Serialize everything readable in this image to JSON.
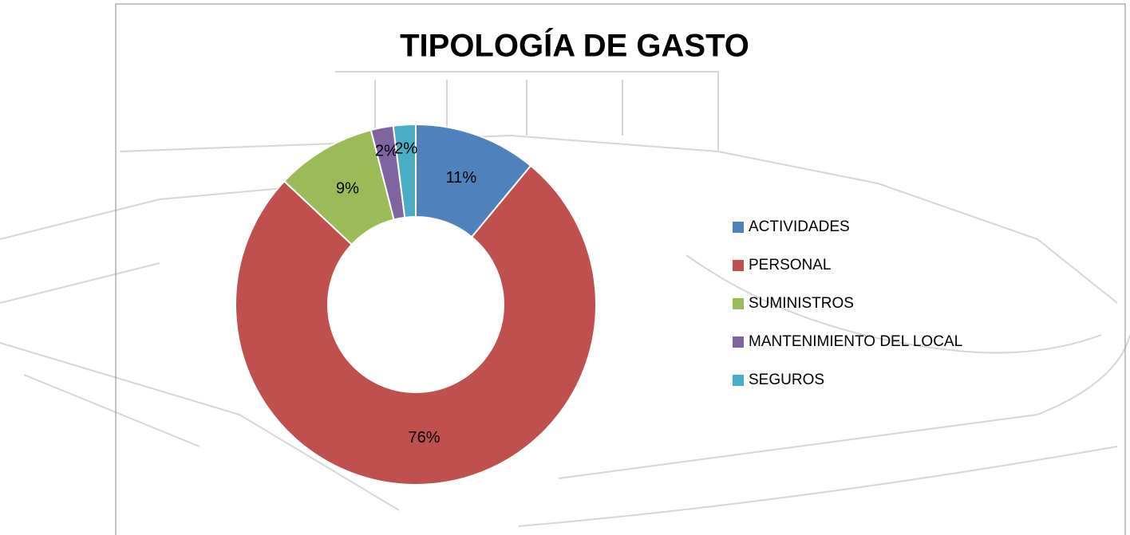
{
  "chart_data": {
    "type": "donut",
    "title": "TIPOLOGÍA DE GASTO",
    "categories": [
      "ACTIVIDADES",
      "PERSONAL",
      "SUMINISTROS",
      "MANTENIMIENTO DEL LOCAL",
      "SEGUROS"
    ],
    "values": [
      11,
      76,
      9,
      2,
      2
    ],
    "value_labels": [
      "11%",
      "76%",
      "9%",
      "2%",
      "2%"
    ],
    "colors": [
      "#4f81bd",
      "#c0504d",
      "#9bbb59",
      "#8064a2",
      "#4bacc6"
    ],
    "legend": "right"
  }
}
